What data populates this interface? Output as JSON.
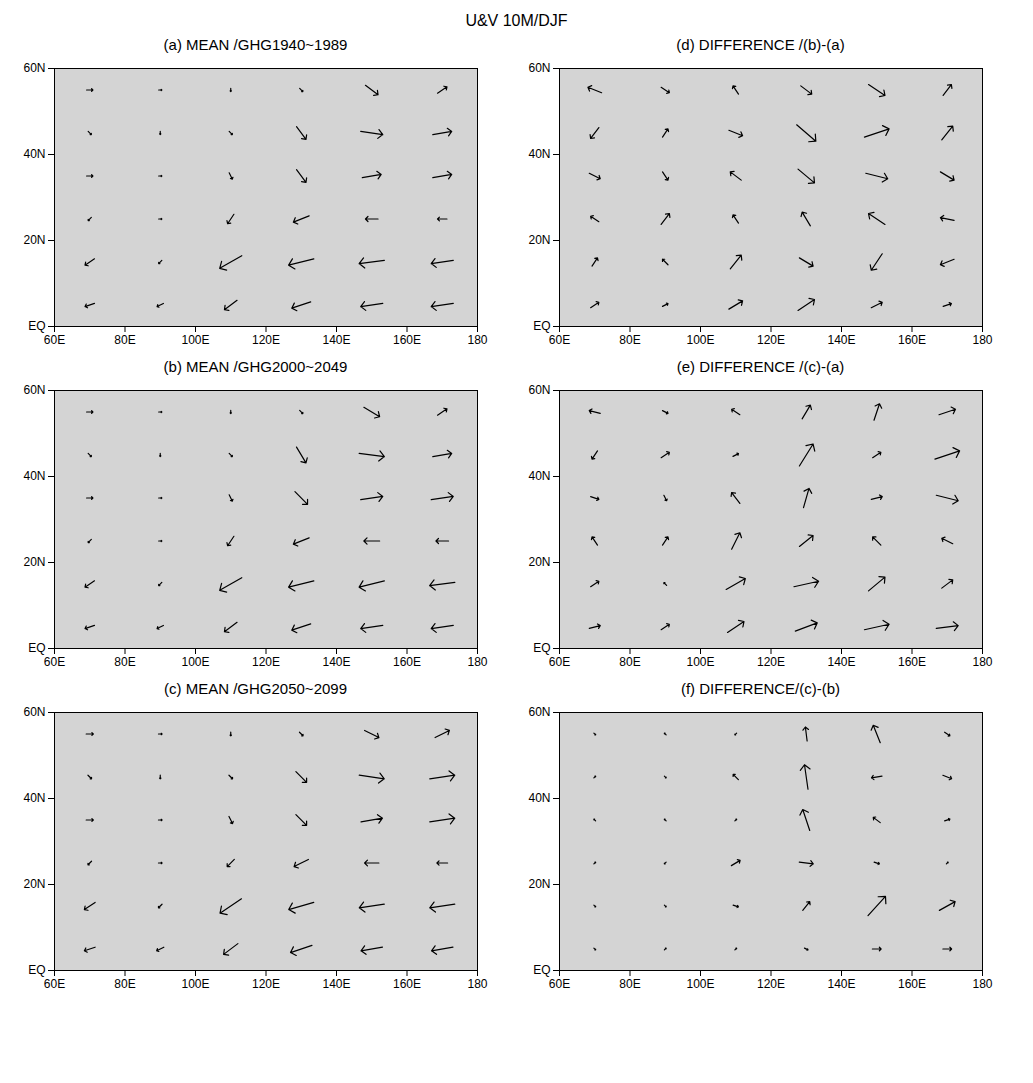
{
  "title": "U&V 10M/DJF",
  "chart_data": [
    {
      "type": "vector",
      "title": "(a) MEAN /GHG1940~1989",
      "color": "#000000",
      "xlim": [
        60,
        180
      ],
      "ylim": [
        0,
        60
      ],
      "xticks": [
        {
          "value": 60,
          "label": "60E"
        },
        {
          "value": 80,
          "label": "80E"
        },
        {
          "value": 100,
          "label": "100E"
        },
        {
          "value": 120,
          "label": "120E"
        },
        {
          "value": 140,
          "label": "140E"
        },
        {
          "value": 160,
          "label": "160E"
        },
        {
          "value": 180,
          "label": "180"
        }
      ],
      "yticks": [
        {
          "value": 0,
          "label": "EQ"
        },
        {
          "value": 20,
          "label": "20N"
        },
        {
          "value": 40,
          "label": "40N"
        },
        {
          "value": 60,
          "label": "60N"
        }
      ],
      "lons": [
        70,
        90,
        110,
        130,
        150,
        170
      ],
      "lats": [
        5,
        15,
        25,
        35,
        45,
        55
      ],
      "u": [
        [
          -3,
          -2,
          -4,
          -6,
          -7,
          -7
        ],
        [
          -3,
          -1,
          -7,
          -8,
          -8,
          -7
        ],
        [
          -1,
          1,
          -2,
          -5,
          -4,
          -3
        ],
        [
          2,
          1,
          1,
          3,
          6,
          6
        ],
        [
          1,
          0,
          1,
          3,
          7,
          6
        ],
        [
          2,
          1,
          0,
          1,
          4,
          3
        ]
      ],
      "v": [
        [
          -1,
          -1,
          -3,
          -2,
          -1,
          -1
        ],
        [
          -2,
          -1,
          -4,
          -2,
          -1,
          -1
        ],
        [
          -1,
          0,
          -3,
          -2,
          0,
          0
        ],
        [
          0,
          0,
          -2,
          -4,
          1,
          1
        ],
        [
          -1,
          -1,
          -1,
          -4,
          -1,
          1
        ],
        [
          0,
          0,
          -1,
          -1,
          -3,
          2
        ]
      ]
    },
    {
      "type": "vector",
      "title": "(b) MEAN /GHG2000~2049",
      "color": "#000000",
      "xlim": [
        60,
        180
      ],
      "ylim": [
        0,
        60
      ],
      "xticks": [
        {
          "value": 60,
          "label": "60E"
        },
        {
          "value": 80,
          "label": "80E"
        },
        {
          "value": 100,
          "label": "100E"
        },
        {
          "value": 120,
          "label": "120E"
        },
        {
          "value": 140,
          "label": "140E"
        },
        {
          "value": 160,
          "label": "160E"
        },
        {
          "value": 180,
          "label": "180"
        }
      ],
      "yticks": [
        {
          "value": 0,
          "label": "EQ"
        },
        {
          "value": 20,
          "label": "20N"
        },
        {
          "value": 40,
          "label": "40N"
        },
        {
          "value": 60,
          "label": "60N"
        }
      ],
      "lons": [
        70,
        90,
        110,
        130,
        150,
        170
      ],
      "lats": [
        5,
        15,
        25,
        35,
        45,
        55
      ],
      "u": [
        [
          -3,
          -2,
          -4,
          -6,
          -7,
          -7
        ],
        [
          -3,
          -1,
          -7,
          -8,
          -8,
          -8
        ],
        [
          -1,
          1,
          -2,
          -5,
          -5,
          -4
        ],
        [
          2,
          1,
          1,
          4,
          7,
          7
        ],
        [
          1,
          0,
          1,
          3,
          8,
          6
        ],
        [
          2,
          1,
          0,
          1,
          5,
          3
        ]
      ],
      "v": [
        [
          -1,
          -1,
          -3,
          -2,
          -1,
          -1
        ],
        [
          -2,
          -1,
          -4,
          -2,
          -2,
          -1
        ],
        [
          -1,
          0,
          -3,
          -2,
          0,
          0
        ],
        [
          0,
          0,
          -2,
          -4,
          1,
          1
        ],
        [
          -1,
          -1,
          -1,
          -5,
          -1,
          1
        ],
        [
          0,
          0,
          -1,
          -1,
          -3,
          2
        ]
      ]
    },
    {
      "type": "vector",
      "title": "(c) MEAN /GHG2050~2099",
      "color": "#000000",
      "xlim": [
        60,
        180
      ],
      "ylim": [
        0,
        60
      ],
      "xticks": [
        {
          "value": 60,
          "label": "60E"
        },
        {
          "value": 80,
          "label": "80E"
        },
        {
          "value": 100,
          "label": "100E"
        },
        {
          "value": 120,
          "label": "120E"
        },
        {
          "value": 140,
          "label": "140E"
        },
        {
          "value": 160,
          "label": "160E"
        },
        {
          "value": 180,
          "label": "180"
        }
      ],
      "yticks": [
        {
          "value": 0,
          "label": "EQ"
        },
        {
          "value": 20,
          "label": "20N"
        },
        {
          "value": 40,
          "label": "40N"
        },
        {
          "value": 60,
          "label": "60N"
        }
      ],
      "lons": [
        70,
        90,
        110,
        130,
        150,
        170
      ],
      "lats": [
        5,
        15,
        25,
        35,
        45,
        55
      ],
      "u": [
        [
          -3,
          -2,
          -4,
          -6,
          -6,
          -6
        ],
        [
          -3,
          -1,
          -6,
          -7,
          -7,
          -7
        ],
        [
          -1,
          1,
          -2,
          -4,
          -4,
          -3
        ],
        [
          2,
          1,
          1,
          3,
          6,
          7
        ],
        [
          1,
          0,
          1,
          3,
          7,
          7
        ],
        [
          2,
          1,
          0,
          1,
          4,
          4
        ]
      ],
      "v": [
        [
          -1,
          -1,
          -3,
          -2,
          -1,
          -1
        ],
        [
          -2,
          -1,
          -4,
          -2,
          -1,
          -1
        ],
        [
          -1,
          0,
          -2,
          -2,
          0,
          0
        ],
        [
          0,
          0,
          -2,
          -3,
          1,
          1
        ],
        [
          -1,
          -1,
          -1,
          -3,
          -1,
          1
        ],
        [
          0,
          0,
          -1,
          -1,
          -2,
          2
        ]
      ]
    },
    {
      "type": "vector",
      "title": "(d) DIFFERENCE /(b)-(a)",
      "color": "#000000",
      "xlim": [
        60,
        180
      ],
      "ylim": [
        0,
        60
      ],
      "xticks": [
        {
          "value": 60,
          "label": "60E"
        },
        {
          "value": 80,
          "label": "80E"
        },
        {
          "value": 100,
          "label": "100E"
        },
        {
          "value": 120,
          "label": "120E"
        },
        {
          "value": 140,
          "label": "140E"
        },
        {
          "value": 160,
          "label": "160E"
        },
        {
          "value": 180,
          "label": "180"
        }
      ],
      "yticks": [
        {
          "value": 0,
          "label": "EQ"
        },
        {
          "value": 20,
          "label": "20N"
        },
        {
          "value": 40,
          "label": "40N"
        },
        {
          "value": 60,
          "label": "60N"
        }
      ],
      "lons": [
        70,
        90,
        110,
        130,
        150,
        170
      ],
      "lats": [
        5,
        15,
        25,
        35,
        45,
        55
      ],
      "u": [
        [
          0.3,
          0.2,
          0.5,
          0.6,
          0.4,
          0.3
        ],
        [
          0.2,
          -0.2,
          0.4,
          0.5,
          -0.4,
          -0.5
        ],
        [
          -0.3,
          0.3,
          -0.2,
          -0.3,
          -0.6,
          -0.5
        ],
        [
          0.4,
          0.2,
          -0.4,
          0.6,
          0.8,
          0.5
        ],
        [
          -0.3,
          0.2,
          0.5,
          0.7,
          0.9,
          0.4
        ],
        [
          -0.5,
          0.3,
          -0.2,
          0.4,
          0.6,
          0.3
        ]
      ],
      "v": [
        [
          0.2,
          0.1,
          0.3,
          0.4,
          0.2,
          0.1
        ],
        [
          0.3,
          0.2,
          0.5,
          -0.3,
          -0.6,
          -0.2
        ],
        [
          0.2,
          0.4,
          0.3,
          0.5,
          0.4,
          0.1
        ],
        [
          -0.2,
          -0.3,
          0.3,
          -0.5,
          -0.2,
          -0.3
        ],
        [
          -0.4,
          0.3,
          -0.2,
          -0.6,
          0.3,
          0.5
        ],
        [
          0.2,
          -0.2,
          0.3,
          -0.3,
          -0.4,
          0.4
        ]
      ]
    },
    {
      "type": "vector",
      "title": "(e) DIFFERENCE /(c)-(a)",
      "color": "#000000",
      "xlim": [
        60,
        180
      ],
      "ylim": [
        0,
        60
      ],
      "xticks": [
        {
          "value": 60,
          "label": "60E"
        },
        {
          "value": 80,
          "label": "80E"
        },
        {
          "value": 100,
          "label": "100E"
        },
        {
          "value": 120,
          "label": "120E"
        },
        {
          "value": 140,
          "label": "140E"
        },
        {
          "value": 160,
          "label": "160E"
        },
        {
          "value": 180,
          "label": "180"
        }
      ],
      "yticks": [
        {
          "value": 0,
          "label": "EQ"
        },
        {
          "value": 20,
          "label": "20N"
        },
        {
          "value": 40,
          "label": "40N"
        },
        {
          "value": 60,
          "label": "60N"
        }
      ],
      "lons": [
        70,
        90,
        110,
        130,
        150,
        170
      ],
      "lats": [
        5,
        15,
        25,
        35,
        45,
        55
      ],
      "u": [
        [
          0.4,
          0.3,
          0.6,
          0.8,
          0.9,
          0.8
        ],
        [
          0.3,
          -0.1,
          0.7,
          0.9,
          0.6,
          0.4
        ],
        [
          -0.2,
          0.2,
          0.3,
          0.5,
          -0.3,
          -0.4
        ],
        [
          0.3,
          0.1,
          -0.3,
          0.2,
          0.4,
          0.8
        ],
        [
          -0.2,
          0.3,
          0.2,
          0.5,
          0.3,
          0.9
        ],
        [
          -0.4,
          0.2,
          -0.3,
          0.3,
          0.2,
          0.6
        ]
      ],
      "v": [
        [
          0.1,
          0.2,
          0.4,
          0.3,
          0.2,
          0.1
        ],
        [
          0.2,
          0.1,
          0.4,
          0.2,
          0.5,
          0.3
        ],
        [
          0.3,
          0.3,
          0.6,
          0.4,
          0.3,
          0.2
        ],
        [
          -0.1,
          -0.2,
          0.4,
          0.7,
          0.1,
          -0.2
        ],
        [
          -0.3,
          0.2,
          0.1,
          0.8,
          0.2,
          0.3
        ],
        [
          0.1,
          -0.1,
          0.2,
          0.5,
          0.6,
          0.2
        ]
      ]
    },
    {
      "type": "vector",
      "title": "(f) DIFFERENCE/(c)-(b)",
      "color": "#000000",
      "xlim": [
        60,
        180
      ],
      "ylim": [
        0,
        60
      ],
      "xticks": [
        {
          "value": 60,
          "label": "60E"
        },
        {
          "value": 80,
          "label": "80E"
        },
        {
          "value": 100,
          "label": "100E"
        },
        {
          "value": 120,
          "label": "120E"
        },
        {
          "value": 140,
          "label": "140E"
        },
        {
          "value": 160,
          "label": "160E"
        },
        {
          "value": 180,
          "label": "180"
        }
      ],
      "yticks": [
        {
          "value": 0,
          "label": "EQ"
        },
        {
          "value": 20,
          "label": "20N"
        },
        {
          "value": 40,
          "label": "40N"
        },
        {
          "value": 60,
          "label": "60N"
        }
      ],
      "lons": [
        70,
        90,
        110,
        130,
        150,
        170
      ],
      "lats": [
        5,
        15,
        25,
        35,
        45,
        55
      ],
      "u": [
        [
          0.1,
          0.1,
          0.1,
          0.2,
          0.5,
          0.5
        ],
        [
          0.1,
          0.1,
          0.3,
          0.4,
          1.0,
          0.9
        ],
        [
          0.1,
          -0.1,
          0.5,
          0.8,
          0.3,
          0.1
        ],
        [
          -0.1,
          -0.1,
          0.1,
          -0.4,
          -0.4,
          0.3
        ],
        [
          0.1,
          0.1,
          -0.3,
          -0.2,
          -0.6,
          0.5
        ],
        [
          0.1,
          -0.1,
          -0.1,
          -0.1,
          -0.4,
          0.3
        ]
      ],
      "v": [
        [
          -0.1,
          0.1,
          0.1,
          -0.1,
          0,
          0
        ],
        [
          -0.1,
          -0.1,
          -0.1,
          0.5,
          1.1,
          0.5
        ],
        [
          0.1,
          -0.1,
          0.3,
          -0.1,
          -0.1,
          0.1
        ],
        [
          0.1,
          0.1,
          0.1,
          1.2,
          0.3,
          0.1
        ],
        [
          0.1,
          -0.1,
          0.3,
          1.4,
          -0.1,
          -0.2
        ],
        [
          -0.1,
          0.1,
          -0.1,
          0.8,
          1.0,
          -0.2
        ]
      ]
    }
  ]
}
